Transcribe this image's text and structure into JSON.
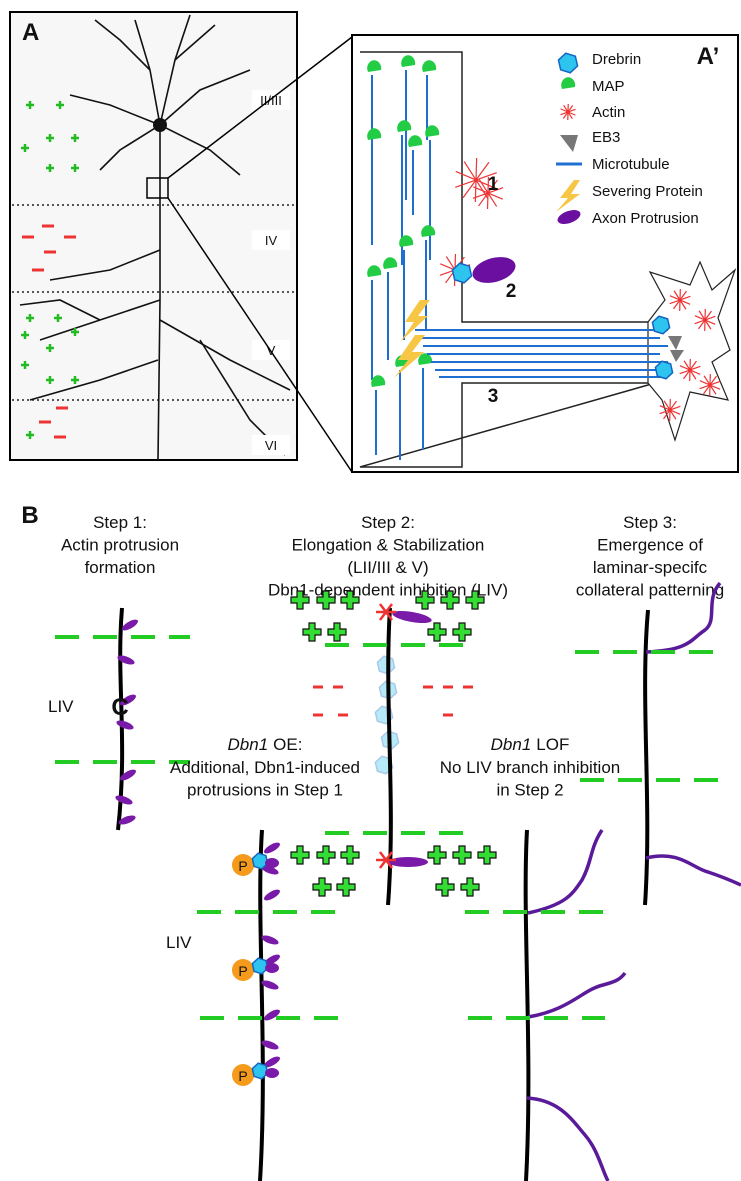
{
  "panel_a": {
    "label": "A",
    "layers": [
      "II/III",
      "IV",
      "V",
      "VI"
    ]
  },
  "panel_a_prime": {
    "label": "A’",
    "legend": [
      "Drebrin",
      "MAP",
      "Actin",
      "EB3",
      "Microtubule",
      "Severing Protein",
      "Axon Protrusion"
    ],
    "sites": [
      "1",
      "2",
      "3"
    ]
  },
  "panel_b": {
    "label": "B",
    "steps": [
      {
        "lines": [
          "Step 1:",
          "Actin protrusion",
          "formation"
        ],
        "layer": "LIV"
      },
      {
        "lines": [
          "Step 2:",
          "Elongation & Stabilization",
          "(LII/III & V)",
          "Dbn1-dependent inhibition (LIV)"
        ]
      },
      {
        "lines": [
          "Step 3:",
          "Emergence of",
          "laminar-specifc",
          "collateral patterning"
        ]
      }
    ]
  },
  "panel_c": {
    "label": "C",
    "conditions": [
      {
        "gene": "Dbn1",
        "heading": "OE:",
        "lines": [
          "Additional, Dbn1-induced",
          "protrusions in Step 1"
        ],
        "layer": "LIV",
        "phospho": [
          "P",
          "P",
          "P"
        ]
      },
      {
        "gene": "Dbn1",
        "heading": "LOF",
        "lines": [
          "No LIV branch inhibition",
          "in Step 2"
        ]
      }
    ]
  }
}
